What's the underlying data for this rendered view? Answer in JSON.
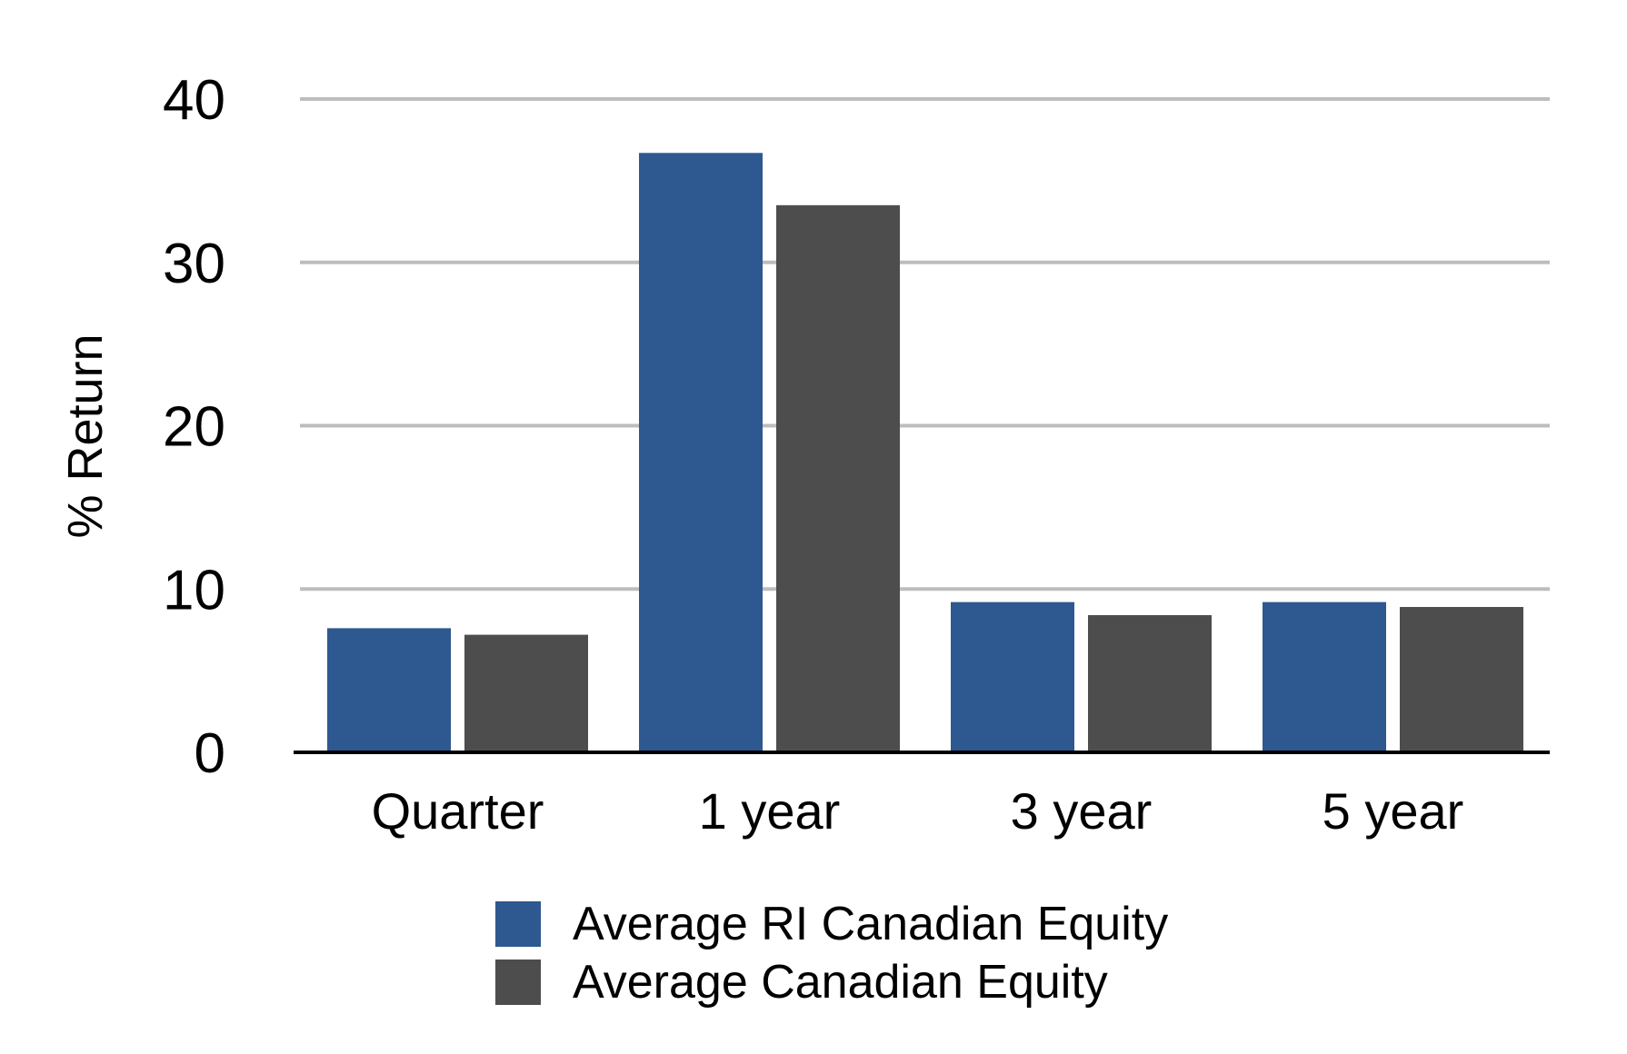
{
  "chart_data": {
    "type": "bar",
    "title": "",
    "xlabel": "",
    "ylabel": "% Return",
    "ylim": [
      0,
      40
    ],
    "yticks": [
      0,
      10,
      20,
      30,
      40
    ],
    "grid": true,
    "legend_position": "bottom",
    "categories": [
      "Quarter",
      "1 year",
      "3 year",
      "5 year"
    ],
    "series": [
      {
        "name": "Average RI Canadian Equity",
        "color": "#2e5890",
        "values": [
          7.6,
          36.7,
          9.2,
          9.2
        ]
      },
      {
        "name": "Average Canadian Equity",
        "color": "#4d4d4d",
        "values": [
          7.2,
          33.5,
          8.4,
          8.9
        ]
      }
    ]
  }
}
